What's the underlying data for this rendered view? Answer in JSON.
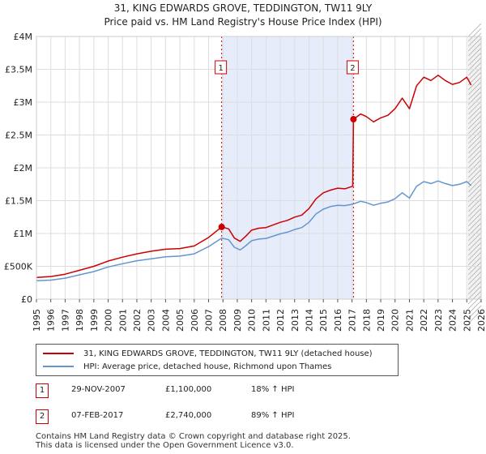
{
  "title_line1": "31, KING EDWARDS GROVE, TEDDINGTON, TW11 9LY",
  "title_line2": "Price paid vs. HM Land Registry's House Price Index (HPI)",
  "chart_data": {
    "type": "line",
    "x_range": [
      1995,
      2026
    ],
    "ylim": [
      0,
      4000000
    ],
    "y_ticks": [
      {
        "value": 0,
        "label": "£0"
      },
      {
        "value": 500000,
        "label": "£500K"
      },
      {
        "value": 1000000,
        "label": "£1M"
      },
      {
        "value": 1500000,
        "label": "£1.5M"
      },
      {
        "value": 2000000,
        "label": "£2M"
      },
      {
        "value": 2500000,
        "label": "£2.5M"
      },
      {
        "value": 3000000,
        "label": "£3M"
      },
      {
        "value": 3500000,
        "label": "£3.5M"
      },
      {
        "value": 4000000,
        "label": "£4M"
      }
    ],
    "x_ticks": [
      "1995",
      "1996",
      "1997",
      "1998",
      "1999",
      "2000",
      "2001",
      "2002",
      "2003",
      "2004",
      "2005",
      "2006",
      "2007",
      "2008",
      "2009",
      "2010",
      "2011",
      "2012",
      "2013",
      "2014",
      "2015",
      "2016",
      "2017",
      "2018",
      "2019",
      "2020",
      "2021",
      "2022",
      "2023",
      "2024",
      "2025",
      "2026"
    ],
    "grid": true,
    "shaded_period": [
      2007.91,
      2017.1
    ],
    "forecast_start": 2025.1,
    "series": [
      {
        "name": "31, KING EDWARDS GROVE, TEDDINGTON, TW11 9LY (detached house)",
        "color": "#cc0000",
        "points": [
          [
            1995.0,
            330000
          ],
          [
            1996.0,
            345000
          ],
          [
            1997.0,
            380000
          ],
          [
            1998.0,
            440000
          ],
          [
            1999.0,
            500000
          ],
          [
            2000.0,
            580000
          ],
          [
            2001.0,
            640000
          ],
          [
            2002.0,
            690000
          ],
          [
            2003.0,
            730000
          ],
          [
            2004.0,
            760000
          ],
          [
            2005.0,
            770000
          ],
          [
            2006.0,
            810000
          ],
          [
            2007.0,
            940000
          ],
          [
            2007.91,
            1100000
          ],
          [
            2008.4,
            1070000
          ],
          [
            2008.8,
            930000
          ],
          [
            2009.2,
            880000
          ],
          [
            2009.6,
            960000
          ],
          [
            2010.0,
            1050000
          ],
          [
            2010.5,
            1080000
          ],
          [
            2011.0,
            1090000
          ],
          [
            2012.0,
            1170000
          ],
          [
            2012.5,
            1200000
          ],
          [
            2013.0,
            1250000
          ],
          [
            2013.5,
            1280000
          ],
          [
            2014.0,
            1380000
          ],
          [
            2014.5,
            1530000
          ],
          [
            2015.0,
            1620000
          ],
          [
            2015.5,
            1660000
          ],
          [
            2016.0,
            1690000
          ],
          [
            2016.5,
            1680000
          ],
          [
            2017.05,
            1720000
          ],
          [
            2017.1,
            2740000
          ],
          [
            2017.6,
            2820000
          ],
          [
            2018.0,
            2780000
          ],
          [
            2018.5,
            2700000
          ],
          [
            2019.0,
            2760000
          ],
          [
            2019.5,
            2800000
          ],
          [
            2020.0,
            2900000
          ],
          [
            2020.5,
            3060000
          ],
          [
            2021.0,
            2900000
          ],
          [
            2021.5,
            3250000
          ],
          [
            2022.0,
            3380000
          ],
          [
            2022.5,
            3330000
          ],
          [
            2023.0,
            3410000
          ],
          [
            2023.5,
            3330000
          ],
          [
            2024.0,
            3270000
          ],
          [
            2024.5,
            3300000
          ],
          [
            2025.0,
            3380000
          ],
          [
            2025.3,
            3260000
          ]
        ]
      },
      {
        "name": "HPI: Average price, detached house, Richmond upon Thames",
        "color": "#6495d0",
        "points": [
          [
            1995.0,
            280000
          ],
          [
            1996.0,
            290000
          ],
          [
            1997.0,
            320000
          ],
          [
            1998.0,
            370000
          ],
          [
            1999.0,
            420000
          ],
          [
            2000.0,
            490000
          ],
          [
            2001.0,
            540000
          ],
          [
            2002.0,
            585000
          ],
          [
            2003.0,
            615000
          ],
          [
            2004.0,
            645000
          ],
          [
            2005.0,
            655000
          ],
          [
            2006.0,
            690000
          ],
          [
            2007.0,
            800000
          ],
          [
            2007.91,
            930000
          ],
          [
            2008.4,
            905000
          ],
          [
            2008.8,
            790000
          ],
          [
            2009.2,
            750000
          ],
          [
            2009.6,
            815000
          ],
          [
            2010.0,
            890000
          ],
          [
            2010.5,
            915000
          ],
          [
            2011.0,
            925000
          ],
          [
            2012.0,
            995000
          ],
          [
            2012.5,
            1020000
          ],
          [
            2013.0,
            1060000
          ],
          [
            2013.5,
            1090000
          ],
          [
            2014.0,
            1170000
          ],
          [
            2014.5,
            1300000
          ],
          [
            2015.0,
            1370000
          ],
          [
            2015.5,
            1410000
          ],
          [
            2016.0,
            1430000
          ],
          [
            2016.5,
            1425000
          ],
          [
            2017.1,
            1450000
          ],
          [
            2017.6,
            1490000
          ],
          [
            2018.0,
            1470000
          ],
          [
            2018.5,
            1430000
          ],
          [
            2019.0,
            1460000
          ],
          [
            2019.5,
            1480000
          ],
          [
            2020.0,
            1530000
          ],
          [
            2020.5,
            1620000
          ],
          [
            2021.0,
            1540000
          ],
          [
            2021.5,
            1720000
          ],
          [
            2022.0,
            1790000
          ],
          [
            2022.5,
            1760000
          ],
          [
            2023.0,
            1800000
          ],
          [
            2023.5,
            1760000
          ],
          [
            2024.0,
            1730000
          ],
          [
            2024.5,
            1750000
          ],
          [
            2025.0,
            1790000
          ],
          [
            2025.3,
            1730000
          ]
        ]
      }
    ],
    "markers": [
      {
        "label": "1",
        "x": 2007.91,
        "y": 1100000
      },
      {
        "label": "2",
        "x": 2017.1,
        "y": 2740000
      }
    ]
  },
  "legend": {
    "items": [
      {
        "label": "31, KING EDWARDS GROVE, TEDDINGTON, TW11 9LY (detached house)",
        "color": "#cc0000"
      },
      {
        "label": "HPI: Average price, detached house, Richmond upon Thames",
        "color": "#6495d0"
      }
    ]
  },
  "transactions": [
    {
      "num": "1",
      "date": "29-NOV-2007",
      "price": "£1,100,000",
      "pct": "18% ↑ HPI"
    },
    {
      "num": "2",
      "date": "07-FEB-2017",
      "price": "£2,740,000",
      "pct": "89% ↑ HPI"
    }
  ],
  "footer": {
    "line1": "Contains HM Land Registry data © Crown copyright and database right 2025.",
    "line2": "This data is licensed under the Open Government Licence v3.0."
  }
}
